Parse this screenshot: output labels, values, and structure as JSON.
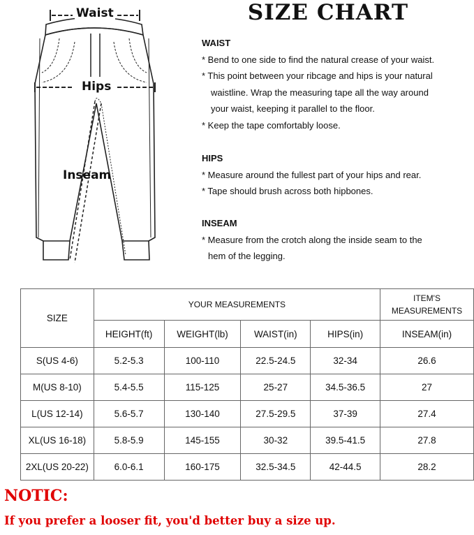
{
  "title": "SIZE CHART",
  "diagram": {
    "waist": "Waist",
    "hips": "Hips",
    "inseam": "Inseam"
  },
  "instructions": {
    "waist": {
      "heading": "WAIST",
      "lines": [
        "* Bend to one side to find the natural crease of your waist.",
        "* This point between your ribcage and hips is your natural",
        "waistline. Wrap the measuring tape all the way around",
        "your waist, keeping it parallel to the floor.",
        "* Keep the tape comfortably loose."
      ]
    },
    "hips": {
      "heading": "HIPS",
      "lines": [
        "* Measure around the fullest part of your hips and rear.",
        "* Tape should brush across both hipbones."
      ]
    },
    "inseam": {
      "heading": "INSEAM",
      "lines": [
        "* Measure from the crotch along the inside seam to the",
        "hem of the legging."
      ]
    }
  },
  "table": {
    "size_header": "SIZE",
    "your_measurements": "YOUR MEASUREMENTS",
    "items_measurements": "ITEM'S MEASUREMENTS",
    "columns": [
      "HEIGHT(ft)",
      "WEIGHT(lb)",
      "WAIST(in)",
      "HIPS(in)",
      "INSEAM(in)"
    ],
    "rows": [
      [
        "S(US 4-6)",
        "5.2-5.3",
        "100-110",
        "22.5-24.5",
        "32-34",
        "26.6"
      ],
      [
        "M(US 8-10)",
        "5.4-5.5",
        "115-125",
        "25-27",
        "34.5-36.5",
        "27"
      ],
      [
        "L(US 12-14)",
        "5.6-5.7",
        "130-140",
        "27.5-29.5",
        "37-39",
        "27.4"
      ],
      [
        "XL(US 16-18)",
        "5.8-5.9",
        "145-155",
        "30-32",
        "39.5-41.5",
        "27.8"
      ],
      [
        "2XL(US 20-22)",
        "6.0-6.1",
        "160-175",
        "32.5-34.5",
        "42-44.5",
        "28.2"
      ]
    ]
  },
  "notice": {
    "label": "NOTIC:",
    "text": "If you prefer a looser fit, you'd better buy a size up.",
    "color": "#e00000"
  }
}
